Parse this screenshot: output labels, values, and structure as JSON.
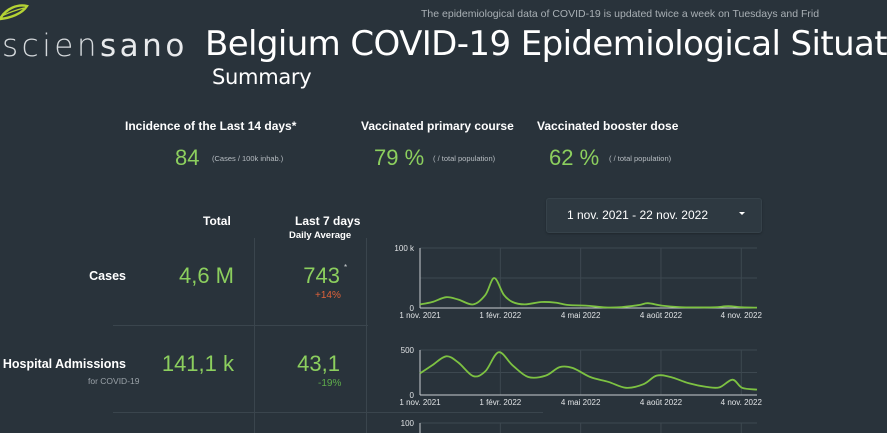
{
  "header": {
    "logo_text_light": "scien",
    "logo_text_bold": "sano",
    "notice": "The epidemiological data of COVID-19 is updated twice a week on Tuesdays and Frid",
    "title": "Belgium COVID-19 Epidemiological Situat",
    "subtitle": "Summary"
  },
  "kpis": [
    {
      "label": "Incidence of the Last 14 days*",
      "value": "84",
      "unit": "(Cases / 100k inhab.)"
    },
    {
      "label": "Vaccinated primary course",
      "value": "79 %",
      "unit": "( / total population)"
    },
    {
      "label": "Vaccinated booster dose",
      "value": "62 %",
      "unit": "( / total population)"
    }
  ],
  "date_range": {
    "value": "1 nov. 2021 - 22 nov. 2022"
  },
  "table": {
    "col_total": "Total",
    "col_last7": "Last 7 days",
    "col_last7_sub": "Daily Average",
    "rows": [
      {
        "label": "Cases",
        "sublabel": "",
        "total": "4,6 M",
        "avg": "743",
        "asterisk": "*",
        "change": "+14%",
        "change_dir": "up"
      },
      {
        "label": "Hospital Admissions",
        "sublabel": "for COVID-19",
        "total": "141,1 k",
        "avg": "43,1",
        "asterisk": "",
        "change": "-19%",
        "change_dir": "down"
      }
    ]
  },
  "colors": {
    "background": "#29333b",
    "accent_green": "#8ccf5e",
    "line_green": "#7dc242",
    "increase_red": "#e0623a",
    "decrease_green": "#5fae4b"
  },
  "chart_data": [
    {
      "type": "line",
      "title": "Cases",
      "x_tick_labels": [
        "1 nov. 2021",
        "1 févr. 2022",
        "4 mai 2022",
        "4 août 2022",
        "4 nov. 2022"
      ],
      "y_tick_labels": [
        "0",
        "100 k"
      ],
      "ylim": [
        0,
        100000
      ],
      "grid": true,
      "x": [
        "2021-11-01",
        "2021-11-15",
        "2021-12-01",
        "2021-12-15",
        "2022-01-01",
        "2022-01-15",
        "2022-01-25",
        "2022-02-05",
        "2022-02-15",
        "2022-03-01",
        "2022-03-20",
        "2022-04-05",
        "2022-04-20",
        "2022-05-10",
        "2022-06-01",
        "2022-06-20",
        "2022-07-10",
        "2022-07-20",
        "2022-08-05",
        "2022-08-25",
        "2022-09-15",
        "2022-10-05",
        "2022-10-20",
        "2022-11-05",
        "2022-11-22"
      ],
      "values": [
        6000,
        10000,
        18000,
        14000,
        6000,
        22000,
        50000,
        22000,
        10000,
        6000,
        10000,
        9000,
        5000,
        4000,
        1000,
        1500,
        5000,
        8000,
        4000,
        1500,
        1000,
        1200,
        3000,
        1200,
        600
      ]
    },
    {
      "type": "line",
      "title": "Hospital Admissions",
      "x_tick_labels": [
        "1 nov. 2021",
        "1 févr. 2022",
        "4 mai 2022",
        "4 août 2022",
        "4 nov. 2022"
      ],
      "y_tick_labels": [
        "0",
        "500"
      ],
      "ylim": [
        0,
        500
      ],
      "grid": true,
      "x": [
        "2021-11-01",
        "2021-11-15",
        "2021-12-01",
        "2021-12-15",
        "2022-01-01",
        "2022-01-15",
        "2022-01-30",
        "2022-02-15",
        "2022-03-05",
        "2022-03-25",
        "2022-04-10",
        "2022-04-25",
        "2022-05-15",
        "2022-06-05",
        "2022-06-25",
        "2022-07-15",
        "2022-07-30",
        "2022-08-15",
        "2022-09-05",
        "2022-09-25",
        "2022-10-10",
        "2022-10-25",
        "2022-11-05",
        "2022-11-22"
      ],
      "values": [
        240,
        330,
        430,
        360,
        210,
        265,
        475,
        330,
        200,
        215,
        310,
        300,
        200,
        145,
        80,
        120,
        215,
        200,
        130,
        90,
        85,
        170,
        80,
        60
      ]
    },
    {
      "type": "line",
      "title": "",
      "y_tick_labels": [
        "100"
      ],
      "values": []
    }
  ]
}
